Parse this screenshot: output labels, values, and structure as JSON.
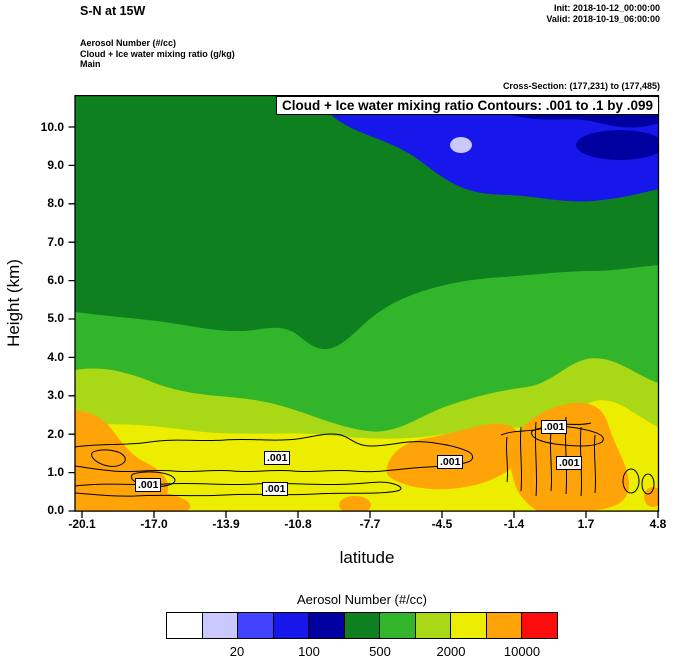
{
  "header": {
    "title": "S-N at 15W",
    "init": "Init: 2018-10-12_00:00:00",
    "valid": "Valid: 2018-10-19_06:00:00",
    "layers": {
      "layer1": "Aerosol Number   (#/cc)",
      "layer2": "Cloud + Ice water mixing ratio   (g/kg)",
      "layer3": "Main"
    },
    "cross_section": "Cross-Section: (177,231) to (177,485)"
  },
  "chart_data": {
    "type": "heatmap",
    "chart_kind": "vertical cross-section filled contour plot with overlaid line contours",
    "title": "Cloud + Ice water mixing ratio Contours: .001 to .1 by .099",
    "xlabel": "latitude",
    "ylabel": "Height (km)",
    "xlim": [
      -20.1,
      4.8
    ],
    "ylim": [
      0.0,
      10.8
    ],
    "xtick_labels": [
      "-20.1",
      "-17.0",
      "-13.9",
      "-10.8",
      "-7.7",
      "-4.5",
      "-1.4",
      "1.7",
      "4.8"
    ],
    "ytick_labels": [
      "10.0",
      "9.0",
      "8.0",
      "7.0",
      "6.0",
      "5.0",
      "4.0",
      "3.0",
      "2.0",
      "1.0",
      "0.0"
    ],
    "grid": "off",
    "legend_position": "bottom",
    "filled_field": {
      "name": "Aerosol Number (#/cc)",
      "legend_boundary_labels": [
        "20",
        "100",
        "500",
        "2000",
        "10000"
      ],
      "approx_grid": {
        "note": "approximate aerosol-number color bin sampled from the shading; rows ordered by height_km (0.5 km first); color names reference legend bins low-to-high: white, lavender, blue, dark-blue, navy, dark-green, green, yellow-green, yellow, orange, red",
        "lat": [
          -20.1,
          -17.0,
          -13.9,
          -10.8,
          -7.7,
          -4.5,
          -1.4,
          1.7,
          4.8
        ],
        "height_km": [
          0.5,
          2,
          4,
          6,
          8,
          10
        ],
        "color_bin": [
          [
            "orange",
            "yellow",
            "yellow",
            "yellow",
            "yellow",
            "orange",
            "orange",
            "orange",
            "yellow"
          ],
          [
            "orange",
            "yellow",
            "yellow-green",
            "green",
            "yellow-green",
            "orange",
            "orange",
            "orange",
            "yellow"
          ],
          [
            "green",
            "green",
            "green",
            "green",
            "green",
            "green",
            "green",
            "yellow-green",
            "green"
          ],
          [
            "dark-green",
            "dark-green",
            "dark-green",
            "dark-green",
            "dark-green",
            "dark-green",
            "dark-green",
            "dark-green",
            "dark-green"
          ],
          [
            "dark-green",
            "dark-green",
            "dark-green",
            "dark-green",
            "dark-green",
            "blue",
            "blue",
            "blue",
            "blue"
          ],
          [
            "dark-green",
            "dark-green",
            "dark-green",
            "blue",
            "blue",
            "blue",
            "navy",
            "navy",
            "blue"
          ]
        ]
      }
    },
    "line_field": {
      "name": "Cloud + Ice water mixing ratio (g/kg)",
      "contour_levels": ".001 to .1 by .099",
      "visible_label_value": ".001",
      "location": "thin black contours between roughly 0.5 and 2.5 km height across the section"
    }
  },
  "contour_labels": [
    ".001",
    ".001",
    ".001",
    ".001",
    ".001",
    ".001"
  ],
  "legend": {
    "title": "Aerosol Number  (#/cc)",
    "labels": [
      "20",
      "100",
      "500",
      "2000",
      "10000"
    ],
    "colors": [
      "#ffffff",
      "#c9c9ff",
      "#4242ff",
      "#1717ec",
      "#0000a0",
      "#0f8020",
      "#33b52b",
      "#a8d816",
      "#eded00",
      "#ffa408",
      "#fb0d0d"
    ]
  }
}
